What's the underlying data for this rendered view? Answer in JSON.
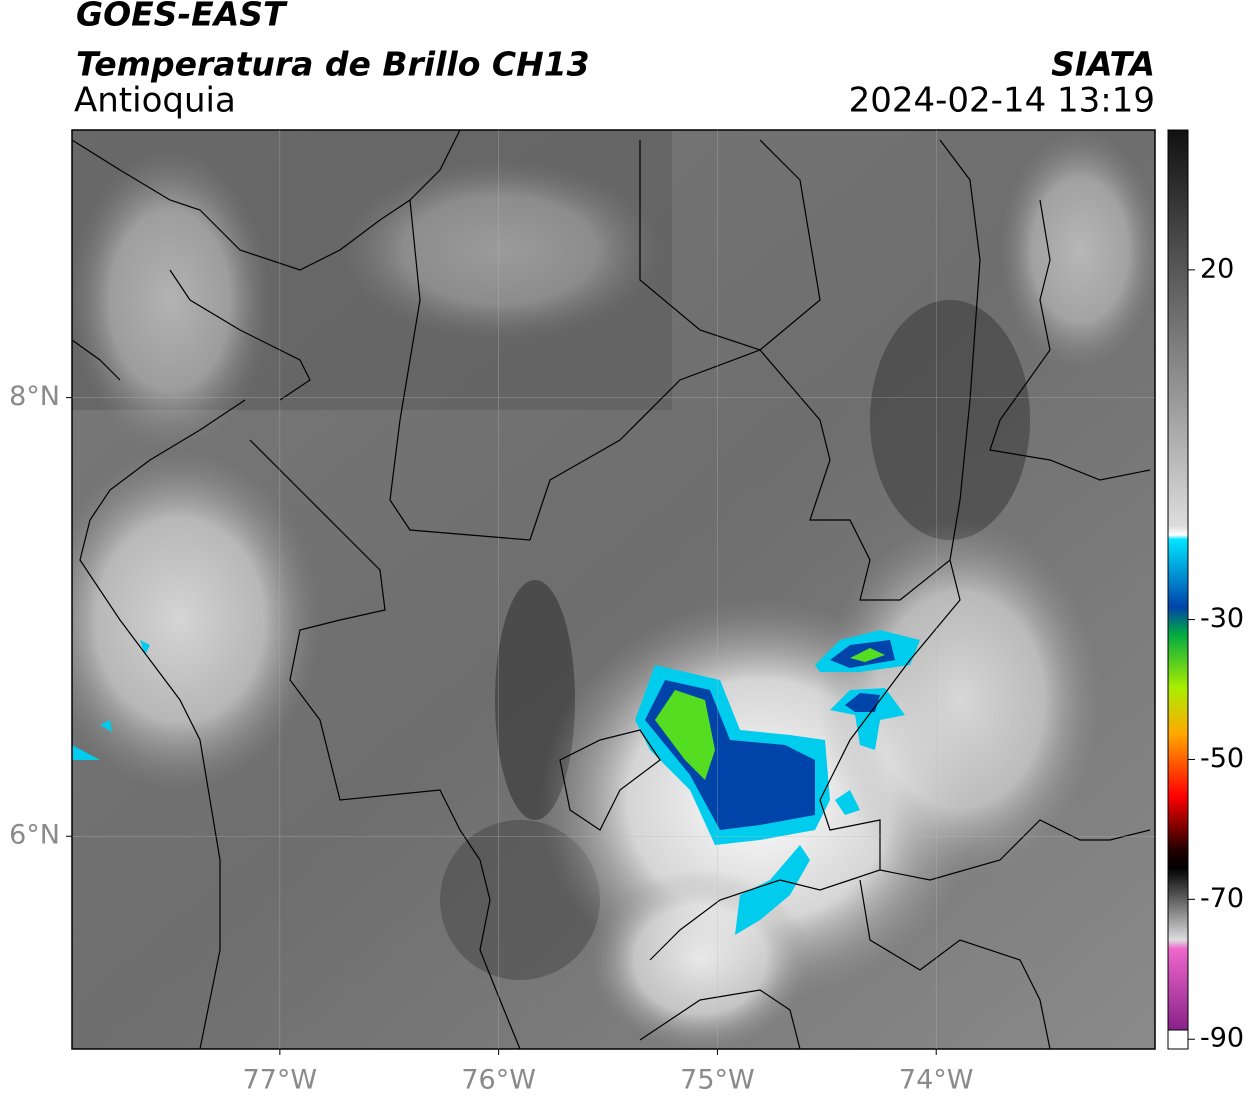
{
  "header": {
    "title": "GOES-EAST",
    "subtitle": "Temperatura de Brillo CH13",
    "region": "Antioquia",
    "source": "SIATA",
    "datetime": "2024-02-14 13:19"
  },
  "map": {
    "lon_range": [
      -77.95,
      -73.0
    ],
    "lat_range": [
      5.03,
      9.22
    ],
    "lon_ticks": [
      {
        "value": -77,
        "label": "77°W"
      },
      {
        "value": -76,
        "label": "76°W"
      },
      {
        "value": -75,
        "label": "75°W"
      },
      {
        "value": -74,
        "label": "74°W"
      }
    ],
    "lat_ticks": [
      {
        "value": 8,
        "label": "8°N"
      },
      {
        "value": 6,
        "label": "6°N"
      }
    ],
    "grid": true
  },
  "colorbar": {
    "range": [
      -91.4,
      40
    ],
    "ticks": [
      20,
      -30,
      -50,
      -70,
      -90
    ]
  }
}
